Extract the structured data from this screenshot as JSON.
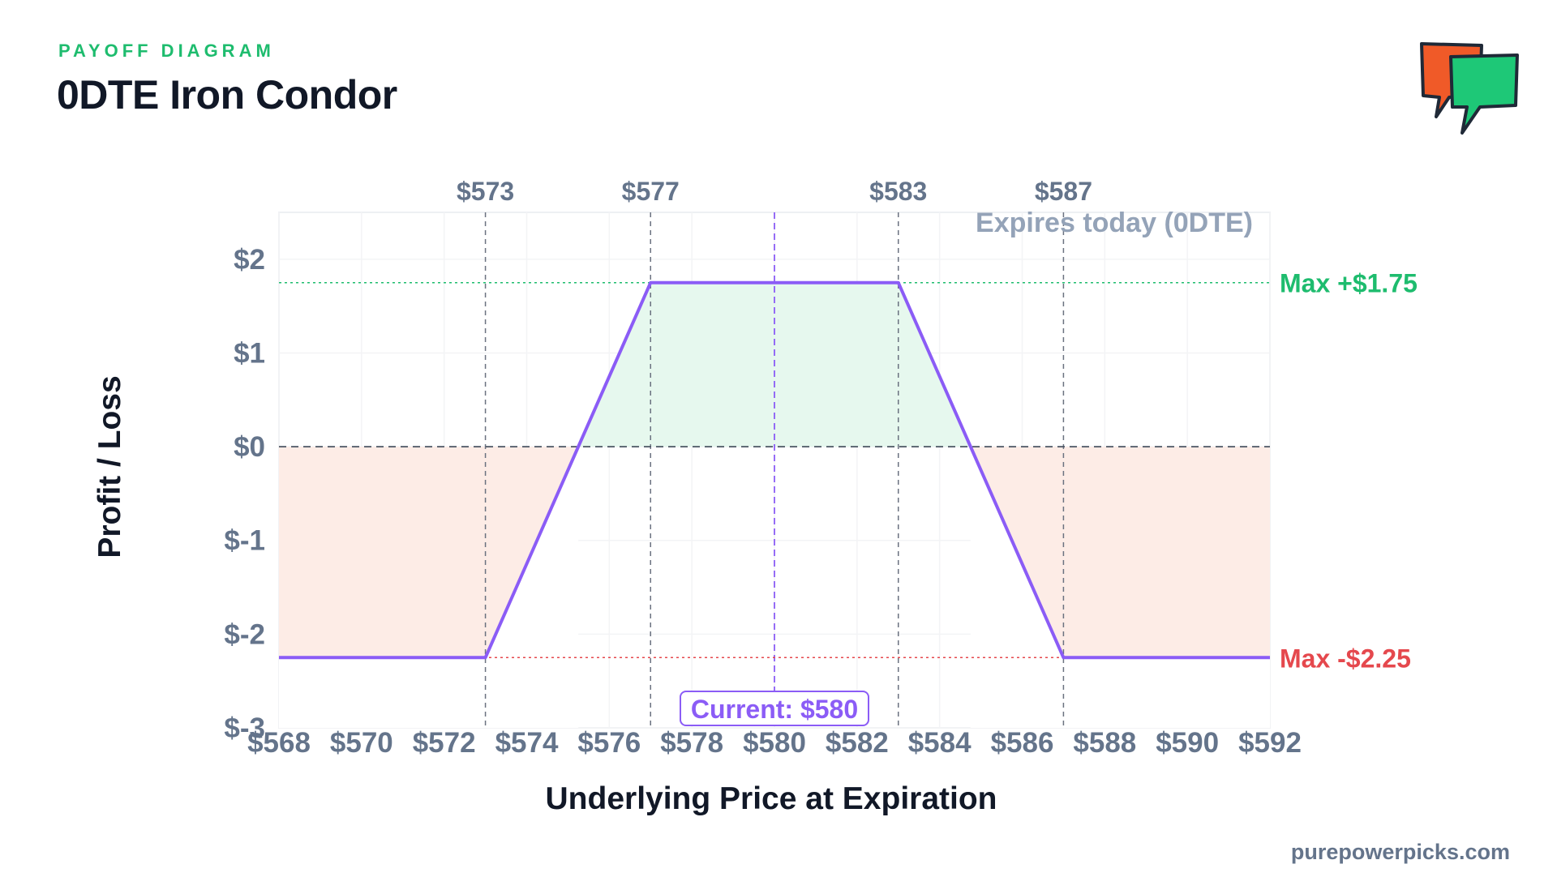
{
  "header": {
    "eyebrow": "PAYOFF DIAGRAM",
    "title": "0DTE Iron Condor"
  },
  "footer": {
    "site": "purepowerpicks.com"
  },
  "logo": {
    "icon": "speech-bubbles-icon",
    "colors": [
      "#f05a28",
      "#1ec877"
    ]
  },
  "colors": {
    "payoff_line": "#8b5cf6",
    "profit_fill": "#e6f8ee",
    "loss_fill": "#fdece6",
    "profit_text": "#1ebc6e",
    "loss_text": "#e5484d",
    "axis_text": "#64748b",
    "note_text": "#94a3b8"
  },
  "chart_data": {
    "type": "line",
    "title": "0DTE Iron Condor",
    "xlabel": "Underlying Price at Expiration",
    "ylabel": "Profit / Loss",
    "xlim": [
      568,
      592
    ],
    "ylim": [
      -3,
      2.5
    ],
    "x_ticks": [
      "$568",
      "$570",
      "$572",
      "$574",
      "$576",
      "$578",
      "$580",
      "$582",
      "$584",
      "$586",
      "$588",
      "$590",
      "$592"
    ],
    "x_tick_values": [
      568,
      570,
      572,
      574,
      576,
      578,
      580,
      582,
      584,
      586,
      588,
      590,
      592
    ],
    "y_ticks": [
      "$2",
      "$1",
      "$0",
      "$-1",
      "$-2",
      "$-3"
    ],
    "y_tick_values": [
      2,
      1,
      0,
      -1,
      -2,
      -3
    ],
    "strikes": [
      {
        "value": 573,
        "label": "$573"
      },
      {
        "value": 577,
        "label": "$577"
      },
      {
        "value": 583,
        "label": "$583"
      },
      {
        "value": 587,
        "label": "$587"
      }
    ],
    "series": [
      {
        "x": [
          568,
          573,
          577,
          583,
          587,
          592
        ],
        "y": [
          -2.25,
          -2.25,
          1.75,
          1.75,
          -2.25,
          -2.25
        ]
      }
    ],
    "max_profit": {
      "value": 1.75,
      "label": "Max +$1.75"
    },
    "max_loss": {
      "value": -2.25,
      "label": "Max -$2.25"
    },
    "current": {
      "value": 580,
      "label": "Current: $580"
    },
    "note": "Expires today (0DTE)",
    "grid": true
  }
}
